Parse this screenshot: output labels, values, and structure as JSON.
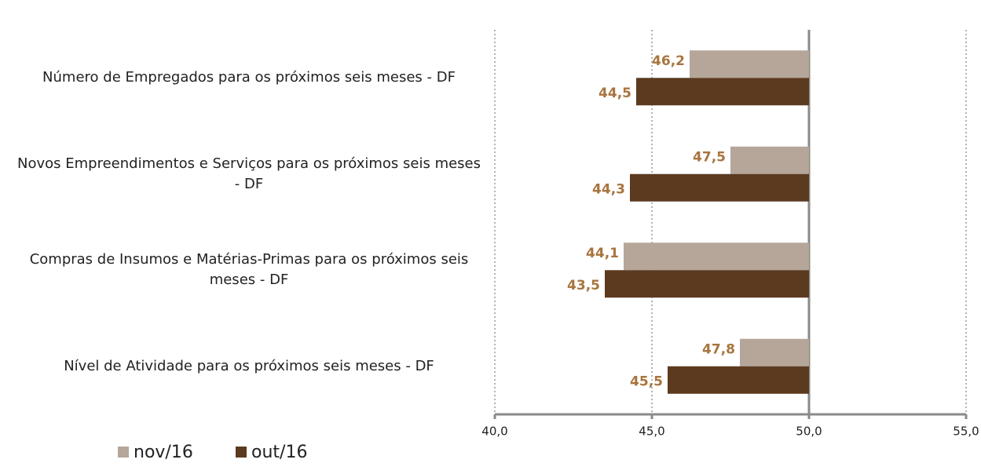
{
  "chart_data": {
    "type": "hbar",
    "categories": [
      "Número de Empregados  para os próximos seis meses - DF",
      "Novos Empreendimentos e Serviços para os próximos seis meses - DF",
      "Compras de Insumos e Matérias-Primas  para os próximos seis meses - DF",
      "Nível de Atividade para os próximos seis meses - DF"
    ],
    "series": [
      {
        "name": "nov/16",
        "color": "#b5a699",
        "values": [
          46.2,
          47.5,
          44.1,
          47.8
        ],
        "value_labels": [
          "46,2",
          "47,5",
          "44,1",
          "47,8"
        ]
      },
      {
        "name": "out/16",
        "color": "#5b3a20",
        "values": [
          44.5,
          44.3,
          43.5,
          45.5
        ],
        "value_labels": [
          "44,5",
          "44,3",
          "43,5",
          "45,5"
        ]
      }
    ],
    "xlim": [
      40,
      55
    ],
    "xticks": [
      {
        "value": 40,
        "label": "40,0"
      },
      {
        "value": 45,
        "label": "45,0"
      },
      {
        "value": 50,
        "label": "50,0"
      },
      {
        "value": 55,
        "label": "55,0"
      }
    ],
    "bar_base": 50,
    "grid": true,
    "legend": "bottom-left"
  }
}
